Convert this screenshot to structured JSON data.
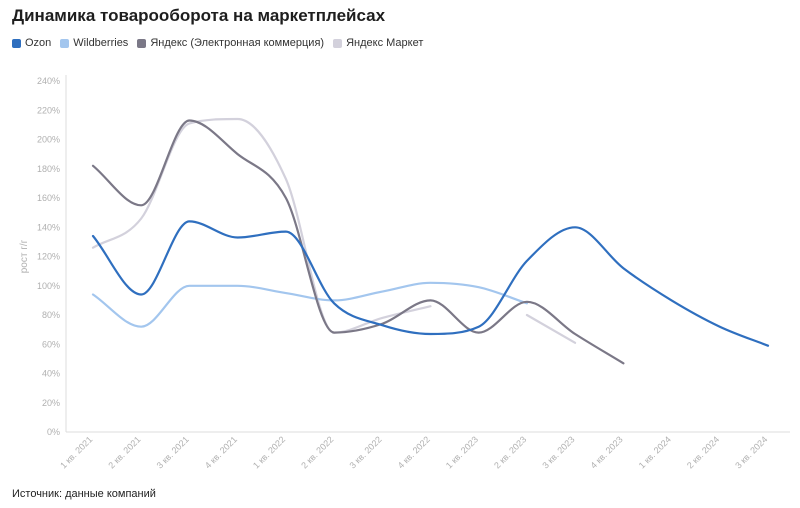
{
  "title": "Динамика товарооборота на маркетплейсах",
  "source": "Источник: данные компаний",
  "chart_data": {
    "type": "line",
    "title": "Динамика товарооборота на маркетплейсах",
    "ylabel": "рост г/г",
    "xlabel": "",
    "ylim": [
      0,
      240
    ],
    "ytick_step": 20,
    "ytick_suffix": "%",
    "grid": false,
    "legend": "top-left",
    "categories": [
      "1 кв. 2021",
      "2 кв. 2021",
      "3 кв. 2021",
      "4 кв. 2021",
      "1 кв. 2022",
      "2 кв. 2022",
      "3 кв. 2022",
      "4 кв. 2022",
      "1 кв. 2023",
      "2 кв. 2023",
      "3 кв. 2023",
      "4 кв. 2023",
      "1 кв. 2024",
      "2 кв. 2024",
      "3 кв. 2024"
    ],
    "series": [
      {
        "name": "Ozon",
        "color": "#2f6fbf",
        "values": [
          134,
          94,
          144,
          133,
          137,
          88,
          73,
          67,
          72,
          117,
          140,
          112,
          90,
          72,
          59
        ]
      },
      {
        "name": "Wildberries",
        "color": "#a3c6ee",
        "values": [
          94,
          72,
          100,
          100,
          95,
          90,
          96,
          102,
          99,
          88,
          null,
          null,
          null,
          null,
          null
        ]
      },
      {
        "name": "Яндекс (Электронная коммерция)",
        "color": "#7b7887",
        "values": [
          182,
          155,
          213,
          190,
          160,
          68,
          74,
          90,
          68,
          89,
          67,
          47,
          null,
          null,
          null
        ]
      },
      {
        "name": "Яндекс Маркет",
        "color": "#d3d1dc",
        "values": [
          126,
          146,
          211,
          214,
          173,
          68,
          78,
          86,
          null,
          80,
          61,
          null,
          null,
          null,
          null
        ]
      }
    ]
  }
}
